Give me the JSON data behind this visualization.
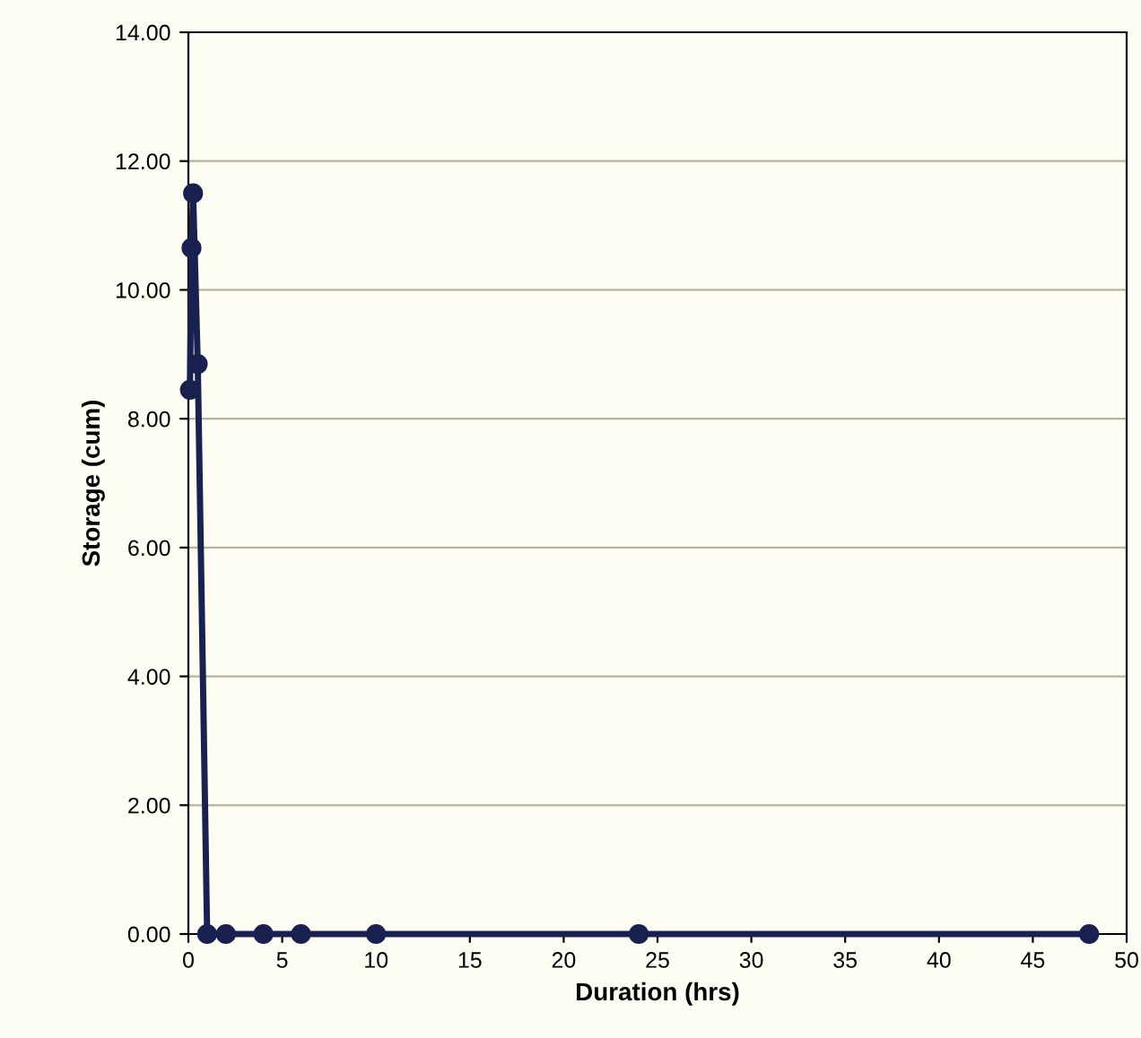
{
  "chart_data": {
    "type": "line",
    "xlabel": "Duration (hrs)",
    "ylabel": "Storage (cum)",
    "x": [
      0.083,
      0.167,
      0.25,
      0.5,
      1,
      2,
      4,
      6,
      10,
      24,
      48
    ],
    "series": [
      {
        "color": "#18214f",
        "values": [
          8.45,
          10.65,
          11.5,
          8.85,
          0,
          0,
          0,
          0,
          0,
          0,
          0
        ]
      }
    ],
    "xlim": [
      0,
      50
    ],
    "xticks": [
      0,
      5,
      10,
      15,
      20,
      25,
      30,
      35,
      40,
      45,
      50
    ],
    "ylim": [
      0,
      14
    ],
    "yticks": [
      {
        "value": 0,
        "label": "0.00"
      },
      {
        "value": 2,
        "label": "2.00"
      },
      {
        "value": 4,
        "label": "4.00"
      },
      {
        "value": 6,
        "label": "6.00"
      },
      {
        "value": 8,
        "label": "8.00"
      },
      {
        "value": 10,
        "label": "10.00"
      },
      {
        "value": 12,
        "label": "12.00"
      },
      {
        "value": 14,
        "label": "14.00"
      }
    ],
    "grid": "y",
    "marker": "circle",
    "line_style": "solid",
    "legend": false
  }
}
